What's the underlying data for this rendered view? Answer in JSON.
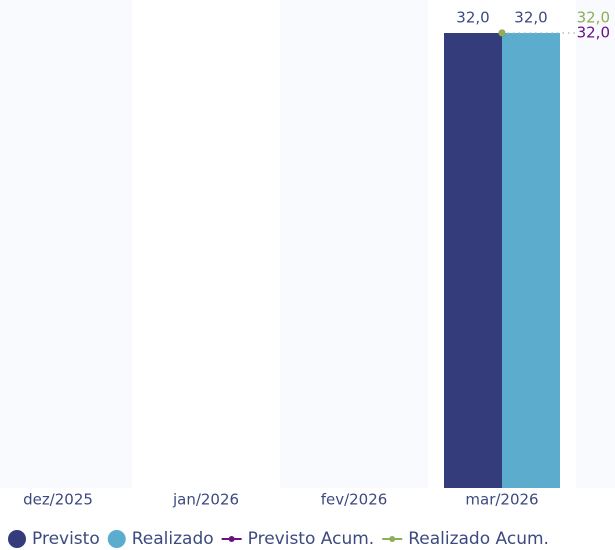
{
  "chart_data": {
    "type": "bar",
    "categories": [
      "dez/2025",
      "jan/2026",
      "fev/2026",
      "mar/2026"
    ],
    "ylim": [
      0,
      32
    ],
    "series": [
      {
        "name": "Previsto",
        "type": "bar",
        "color": "#343c7c",
        "values": [
          null,
          null,
          null,
          32
        ],
        "value_labels": [
          null,
          null,
          null,
          "32,0"
        ]
      },
      {
        "name": "Realizado",
        "type": "bar",
        "color": "#5cadcd",
        "values": [
          null,
          null,
          null,
          32
        ],
        "value_labels": [
          null,
          null,
          null,
          "32,0"
        ]
      },
      {
        "name": "Previsto Acum.",
        "type": "line",
        "color": "#6a1283",
        "values": [
          null,
          null,
          null,
          32
        ],
        "value_labels": [
          null,
          null,
          null,
          "32,0"
        ]
      },
      {
        "name": "Realizado Acum.",
        "type": "line",
        "color": "#8fae55",
        "values": [
          null,
          null,
          null,
          32
        ],
        "value_labels": [
          null,
          null,
          null,
          "32,0"
        ]
      }
    ]
  }
}
